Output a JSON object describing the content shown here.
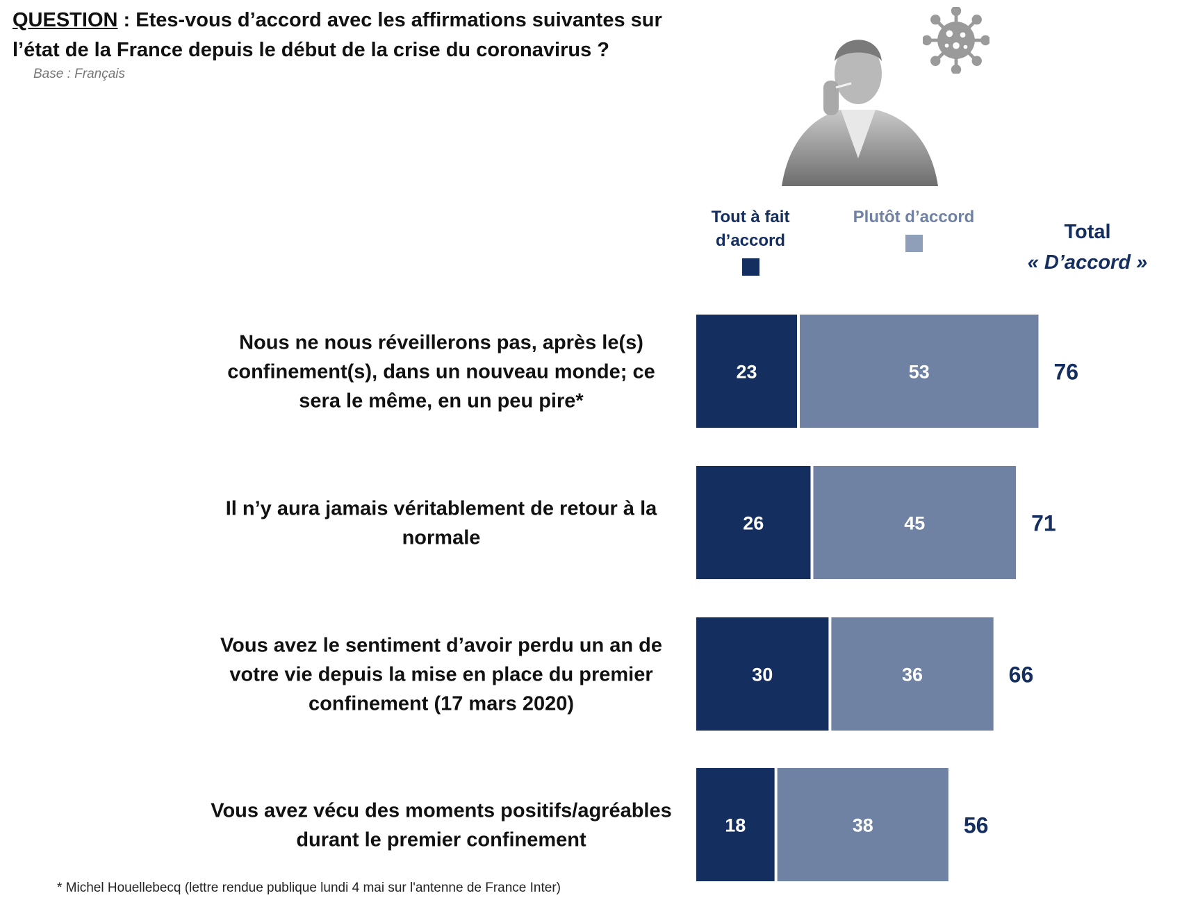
{
  "question": {
    "label": "QUESTION",
    "text": " : Etes-vous d’accord avec les affirmations suivantes sur l’état de la France depuis le début de la crise du coronavirus ?",
    "base": "Base : Français"
  },
  "legend": {
    "series1": "Tout à fait d’accord",
    "series2": "Plutôt d’accord",
    "total_line1": "Total",
    "total_line2": "« D’accord »"
  },
  "colors": {
    "dark": "#142e60",
    "light": "#6f82a3",
    "total_text": "#142e60"
  },
  "footnote": "* Michel Houellebecq (lettre rendue publique lundi 4 mai sur l'antenne de France Inter)",
  "chart_data": {
    "type": "bar",
    "orientation": "horizontal",
    "stacked": true,
    "categories": [
      [
        "Nous ne nous réveillerons pas, après le(s)",
        "confinement(s), dans un nouveau monde; ce",
        "sera le même, en un peu pire*"
      ],
      [
        "Il n’y aura jamais véritablement de retour à la",
        "normale"
      ],
      [
        "Vous avez le sentiment d’avoir perdu un an de",
        "votre vie depuis la mise en place du premier",
        "confinement (17 mars 2020)"
      ],
      [
        "Vous avez vécu des moments positifs/agréables",
        "durant le premier confinement"
      ]
    ],
    "series": [
      {
        "name": "Tout à fait d’accord",
        "values": [
          23,
          26,
          30,
          18
        ],
        "color": "#142e60"
      },
      {
        "name": "Plutôt d’accord",
        "values": [
          53,
          45,
          36,
          38
        ],
        "color": "#6f82a3"
      }
    ],
    "totals": [
      76,
      71,
      66,
      56
    ],
    "legend_position": "top",
    "grid": false
  }
}
